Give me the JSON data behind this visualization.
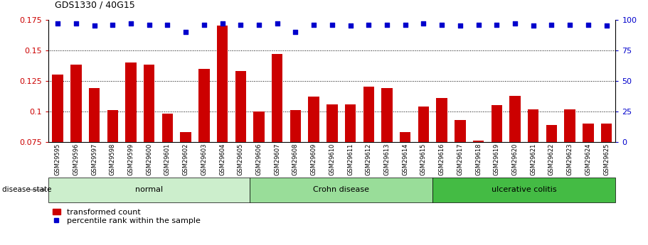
{
  "title": "GDS1330 / 40G15",
  "categories": [
    "GSM29595",
    "GSM29596",
    "GSM29597",
    "GSM29598",
    "GSM29599",
    "GSM29600",
    "GSM29601",
    "GSM29602",
    "GSM29603",
    "GSM29604",
    "GSM29605",
    "GSM29606",
    "GSM29607",
    "GSM29608",
    "GSM29609",
    "GSM29610",
    "GSM29611",
    "GSM29612",
    "GSM29613",
    "GSM29614",
    "GSM29615",
    "GSM29616",
    "GSM29617",
    "GSM29618",
    "GSM29619",
    "GSM29620",
    "GSM29621",
    "GSM29622",
    "GSM29623",
    "GSM29624",
    "GSM29625"
  ],
  "bar_values": [
    0.13,
    0.138,
    0.119,
    0.101,
    0.14,
    0.138,
    0.098,
    0.083,
    0.135,
    0.17,
    0.133,
    0.1,
    0.147,
    0.101,
    0.112,
    0.106,
    0.106,
    0.12,
    0.119,
    0.083,
    0.104,
    0.111,
    0.093,
    0.076,
    0.105,
    0.113,
    0.102,
    0.089,
    0.102,
    0.09,
    0.09
  ],
  "percentile_values": [
    97,
    97,
    95,
    96,
    97,
    96,
    96,
    90,
    96,
    97,
    96,
    96,
    97,
    90,
    96,
    96,
    95,
    96,
    96,
    96,
    97,
    96,
    95,
    96,
    96,
    97,
    95,
    96,
    96,
    96,
    95
  ],
  "bar_color": "#cc0000",
  "dot_color": "#0000cc",
  "ylim_left": [
    0.075,
    0.175
  ],
  "ylim_right": [
    0,
    100
  ],
  "yticks_left": [
    0.075,
    0.1,
    0.125,
    0.15,
    0.175
  ],
  "yticks_right": [
    0,
    25,
    50,
    75,
    100
  ],
  "grid_ticks": [
    0.1,
    0.125,
    0.15
  ],
  "disease_groups": [
    {
      "label": "normal",
      "start": 0,
      "end": 11,
      "color": "#cceecc"
    },
    {
      "label": "Crohn disease",
      "start": 11,
      "end": 21,
      "color": "#99dd99"
    },
    {
      "label": "ulcerative colitis",
      "start": 21,
      "end": 31,
      "color": "#44bb44"
    }
  ],
  "disease_state_label": "disease state",
  "legend_bar_label": "transformed count",
  "legend_dot_label": "percentile rank within the sample",
  "background_color": "#ffffff"
}
